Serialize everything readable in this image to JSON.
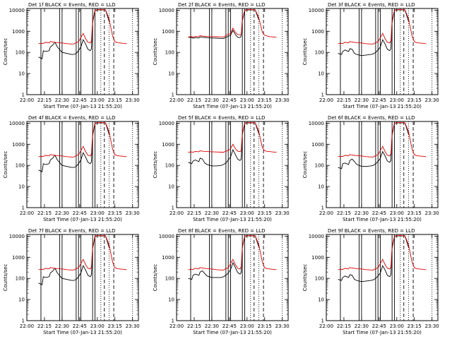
{
  "chart_data": {
    "type": "line",
    "start_time_label": "Start Time (07-Jan-13 21:55:20)",
    "ylabel": "Counts/sec",
    "yscale": "log",
    "ylim": [
      1,
      12000
    ],
    "y_ticks": [
      1,
      10,
      100,
      1000,
      10000
    ],
    "y_tick_labels": [
      "1",
      "10",
      "100",
      "1000",
      "10000"
    ],
    "x_ticks": [
      0,
      15,
      30,
      45,
      60,
      75,
      90
    ],
    "x_tick_labels": [
      "22:00",
      "22:15",
      "22:30",
      "22:45",
      "23:00",
      "23:15",
      "23:30"
    ],
    "xlim": [
      0,
      95
    ],
    "legend_text": "BLACK = Events, RED = LLD",
    "series_colors": {
      "events": "#000000",
      "lld": "#dd0000"
    },
    "time_knots": [
      10,
      13,
      14,
      16,
      19,
      20,
      22,
      24,
      26,
      30,
      34,
      38,
      40,
      42,
      44,
      46,
      48,
      50,
      52,
      54,
      55,
      56,
      58,
      60,
      63,
      65,
      67,
      70,
      73,
      75,
      77,
      79,
      82,
      85
    ],
    "panels": [
      {
        "detector": "Det 1f",
        "lld": [
          260,
          270,
          265,
          300,
          280,
          330,
          310,
          300,
          290,
          280,
          260,
          250,
          250,
          290,
          320,
          500,
          800,
          450,
          300,
          280,
          350,
          3000,
          10000,
          10500,
          10600,
          10500,
          10400,
          4000,
          600,
          320,
          290,
          280,
          270,
          260
        ],
        "events": [
          60,
          50,
          120,
          110,
          120,
          180,
          220,
          300,
          180,
          100,
          90,
          80,
          80,
          90,
          120,
          180,
          400,
          250,
          140,
          120,
          150,
          2500,
          9500,
          10200,
          10400,
          10300,
          10200,
          3000,
          null,
          null,
          null,
          null,
          null,
          null
        ]
      },
      {
        "detector": "Det 2f",
        "lld": [
          540,
          550,
          530,
          570,
          560,
          620,
          590,
          580,
          570,
          560,
          550,
          540,
          540,
          620,
          720,
          780,
          1400,
          900,
          700,
          680,
          720,
          3500,
          10000,
          10500,
          10600,
          10500,
          10400,
          4500,
          900,
          650,
          600,
          560,
          540,
          520
        ],
        "events": [
          520,
          510,
          470,
          500,
          480,
          540,
          520,
          510,
          500,
          480,
          470,
          460,
          460,
          520,
          580,
          650,
          1100,
          700,
          520,
          500,
          600,
          3000,
          9500,
          10200,
          10400,
          10300,
          10200,
          3500,
          null,
          null,
          null,
          null,
          null,
          null
        ]
      },
      {
        "detector": "Det 3f",
        "lld": [
          260,
          270,
          265,
          300,
          280,
          330,
          310,
          300,
          290,
          280,
          260,
          250,
          250,
          290,
          320,
          500,
          800,
          450,
          300,
          280,
          350,
          3000,
          10000,
          10500,
          10600,
          10500,
          10400,
          4000,
          600,
          320,
          290,
          280,
          270,
          260
        ],
        "events": [
          90,
          80,
          110,
          130,
          110,
          150,
          140,
          90,
          80,
          70,
          75,
          80,
          85,
          100,
          130,
          180,
          400,
          250,
          140,
          120,
          150,
          2500,
          9500,
          10200,
          10400,
          10300,
          10200,
          3000,
          null,
          null,
          null,
          null,
          null,
          null
        ]
      },
      {
        "detector": "Det 4f",
        "lld": [
          260,
          270,
          265,
          300,
          280,
          330,
          310,
          300,
          290,
          280,
          260,
          250,
          250,
          290,
          320,
          500,
          800,
          450,
          300,
          280,
          350,
          3000,
          10000,
          10500,
          10600,
          10500,
          10400,
          4000,
          600,
          320,
          290,
          280,
          270,
          260
        ],
        "events": [
          60,
          50,
          120,
          110,
          120,
          180,
          220,
          300,
          180,
          100,
          90,
          80,
          80,
          90,
          120,
          180,
          400,
          250,
          140,
          120,
          150,
          2500,
          9500,
          10200,
          10400,
          10300,
          10200,
          3000,
          null,
          null,
          null,
          null,
          null,
          null
        ]
      },
      {
        "detector": "Det 5f",
        "lld": [
          420,
          430,
          420,
          460,
          440,
          490,
          470,
          460,
          450,
          440,
          430,
          420,
          420,
          470,
          520,
          620,
          1000,
          620,
          470,
          450,
          500,
          3300,
          10000,
          10500,
          10600,
          10500,
          10400,
          4200,
          700,
          500,
          460,
          450,
          430,
          420
        ],
        "events": [
          140,
          120,
          160,
          180,
          150,
          220,
          200,
          130,
          110,
          95,
          95,
          100,
          110,
          130,
          180,
          250,
          550,
          330,
          200,
          170,
          200,
          2800,
          9500,
          10200,
          10400,
          10300,
          10200,
          3200,
          null,
          null,
          null,
          null,
          null,
          null
        ]
      },
      {
        "detector": "Det 6f",
        "lld": [
          260,
          270,
          265,
          300,
          280,
          330,
          310,
          300,
          290,
          280,
          260,
          250,
          250,
          290,
          320,
          500,
          800,
          450,
          300,
          280,
          350,
          3000,
          10000,
          10500,
          10600,
          10500,
          10400,
          4000,
          600,
          320,
          290,
          280,
          270,
          260
        ],
        "events": [
          80,
          70,
          120,
          130,
          110,
          170,
          200,
          150,
          110,
          90,
          90,
          95,
          100,
          120,
          150,
          220,
          450,
          280,
          160,
          140,
          170,
          2600,
          9500,
          10200,
          10400,
          10300,
          10200,
          3000,
          null,
          null,
          null,
          null,
          null,
          null
        ]
      },
      {
        "detector": "Det 7f",
        "lld": [
          260,
          270,
          265,
          300,
          280,
          330,
          310,
          300,
          290,
          280,
          260,
          250,
          250,
          290,
          320,
          500,
          800,
          450,
          300,
          280,
          350,
          3000,
          10000,
          10500,
          10600,
          10500,
          10400,
          4000,
          600,
          320,
          290,
          280,
          270,
          260
        ],
        "events": [
          60,
          50,
          120,
          110,
          120,
          180,
          220,
          300,
          180,
          100,
          90,
          80,
          80,
          90,
          120,
          180,
          400,
          250,
          140,
          120,
          150,
          2500,
          9500,
          10200,
          10400,
          10300,
          10200,
          3000,
          null,
          null,
          null,
          null,
          null,
          null
        ]
      },
      {
        "detector": "Det 8f",
        "lld": [
          260,
          270,
          265,
          300,
          280,
          330,
          310,
          300,
          290,
          280,
          260,
          250,
          250,
          290,
          320,
          500,
          800,
          450,
          300,
          280,
          350,
          3000,
          10000,
          10500,
          10600,
          10500,
          10400,
          4000,
          600,
          320,
          290,
          280,
          270,
          260
        ],
        "events": [
          100,
          90,
          140,
          160,
          140,
          200,
          230,
          170,
          130,
          110,
          110,
          110,
          120,
          140,
          180,
          260,
          550,
          330,
          190,
          160,
          190,
          2700,
          9500,
          10200,
          10400,
          10300,
          10200,
          3100,
          null,
          null,
          null,
          null,
          null,
          null
        ]
      },
      {
        "detector": "Det 9f",
        "lld": [
          260,
          270,
          265,
          300,
          280,
          330,
          310,
          300,
          290,
          280,
          260,
          250,
          250,
          290,
          320,
          500,
          800,
          450,
          300,
          280,
          350,
          3000,
          10000,
          10500,
          10600,
          10500,
          10400,
          4000,
          600,
          320,
          290,
          280,
          270,
          260
        ],
        "events": [
          90,
          80,
          110,
          130,
          110,
          150,
          140,
          90,
          80,
          70,
          75,
          80,
          85,
          100,
          130,
          180,
          400,
          250,
          140,
          120,
          150,
          2500,
          9500,
          10200,
          10400,
          10300,
          10200,
          3000,
          null,
          null,
          null,
          null,
          null,
          null
        ]
      }
    ],
    "solid_lines": [
      12,
      28,
      30,
      42,
      44,
      46,
      56,
      58
    ],
    "dotted_lines": [
      12,
      63,
      70,
      90
    ],
    "dashed_lines": [
      66,
      74
    ]
  }
}
